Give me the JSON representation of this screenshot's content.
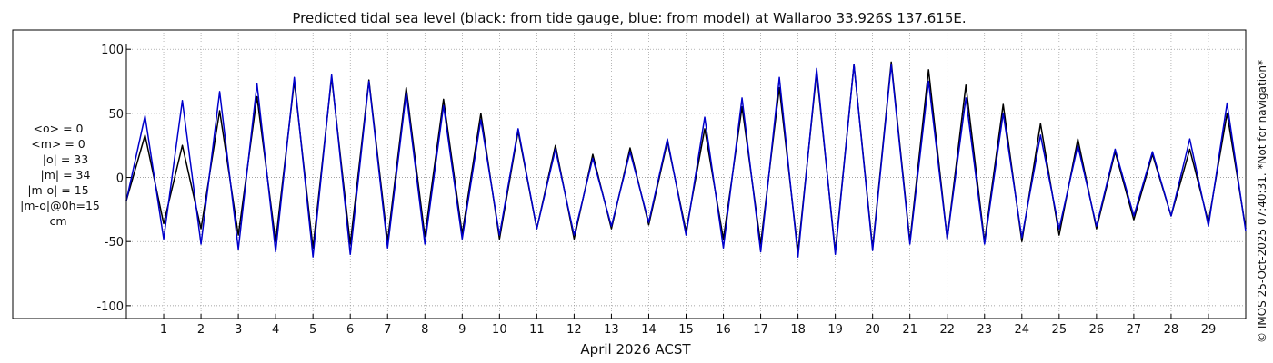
{
  "chart_data": {
    "type": "line",
    "title": "Predicted tidal sea level (black: from tide gauge, blue: from model) at Wallaroo 33.926S 137.615E.",
    "xlabel": "April 2026 ACST",
    "ylabel": "",
    "ylim": [
      -110,
      115
    ],
    "xlim": [
      0.0,
      30.0
    ],
    "y_ticks": [
      100,
      50,
      0,
      -50,
      -100
    ],
    "x_ticks": [
      1,
      2,
      3,
      4,
      5,
      6,
      7,
      8,
      9,
      10,
      11,
      12,
      13,
      14,
      15,
      16,
      17,
      18,
      19,
      20,
      21,
      22,
      23,
      24,
      25,
      26,
      27,
      28,
      29
    ],
    "grid": true,
    "colors": {
      "gauge": "#000000",
      "model": "#0000cc",
      "grid": "#888888"
    },
    "series": [
      {
        "name": "from tide gauge",
        "color": "#000000",
        "x": [
          0.0,
          0.5,
          1.0,
          1.5,
          2.0,
          2.5,
          3.0,
          3.5,
          4.0,
          4.5,
          5.0,
          5.5,
          6.0,
          6.5,
          7.0,
          7.5,
          8.0,
          8.5,
          9.0,
          9.5,
          10.0,
          10.5,
          11.0,
          11.5,
          12.0,
          12.5,
          13.0,
          13.5,
          14.0,
          14.5,
          15.0,
          15.5,
          16.0,
          16.5,
          17.0,
          17.5,
          18.0,
          18.5,
          19.0,
          19.5,
          20.0,
          20.5,
          21.0,
          21.5,
          22.0,
          22.5,
          23.0,
          23.5,
          24.0,
          24.5,
          25.0,
          25.5,
          26.0,
          26.5,
          27.0,
          27.5,
          28.0,
          28.5,
          29.0,
          29.5,
          30.0
        ],
        "y": [
          -18,
          33,
          -36,
          25,
          -40,
          52,
          -45,
          63,
          -50,
          75,
          -55,
          78,
          -52,
          76,
          -50,
          70,
          -46,
          61,
          -44,
          50,
          -48,
          36,
          -40,
          25,
          -48,
          18,
          -40,
          23,
          -37,
          28,
          -42,
          38,
          -48,
          55,
          -52,
          70,
          -58,
          82,
          -58,
          88,
          -55,
          90,
          -50,
          84,
          -48,
          72,
          -50,
          57,
          -50,
          42,
          -45,
          30,
          -40,
          20,
          -33,
          18,
          -30,
          22,
          -35,
          50,
          -40
        ]
      },
      {
        "name": "from model",
        "color": "#0000cc",
        "x": [
          0.0,
          0.5,
          1.0,
          1.5,
          2.0,
          2.5,
          3.0,
          3.5,
          4.0,
          4.5,
          5.0,
          5.5,
          6.0,
          6.5,
          7.0,
          7.5,
          8.0,
          8.5,
          9.0,
          9.5,
          10.0,
          10.5,
          11.0,
          11.5,
          12.0,
          12.5,
          13.0,
          13.5,
          14.0,
          14.5,
          15.0,
          15.5,
          16.0,
          16.5,
          17.0,
          17.5,
          18.0,
          18.5,
          19.0,
          19.5,
          20.0,
          20.5,
          21.0,
          21.5,
          22.0,
          22.5,
          23.0,
          23.5,
          24.0,
          24.5,
          25.0,
          25.5,
          26.0,
          26.5,
          27.0,
          27.5,
          28.0,
          28.5,
          29.0,
          29.5,
          30.0
        ],
        "y": [
          -18,
          48,
          -48,
          60,
          -52,
          67,
          -56,
          73,
          -58,
          78,
          -62,
          80,
          -60,
          75,
          -55,
          66,
          -52,
          56,
          -48,
          45,
          -45,
          38,
          -40,
          22,
          -45,
          15,
          -38,
          20,
          -35,
          30,
          -45,
          47,
          -55,
          62,
          -58,
          78,
          -62,
          85,
          -60,
          88,
          -57,
          88,
          -52,
          75,
          -48,
          62,
          -52,
          50,
          -47,
          33,
          -40,
          25,
          -38,
          22,
          -30,
          20,
          -30,
          30,
          -38,
          58,
          -42
        ]
      }
    ]
  },
  "left_stats": [
    "<o> = 0",
    "<m> = 0",
    "|o| = 33",
    "|m| = 34",
    "|m-o| = 15",
    "|m-o|@0h=15",
    "cm"
  ],
  "side_note": "© IMOS 25-Oct-2025 07:40:31. *Not for navigation*"
}
